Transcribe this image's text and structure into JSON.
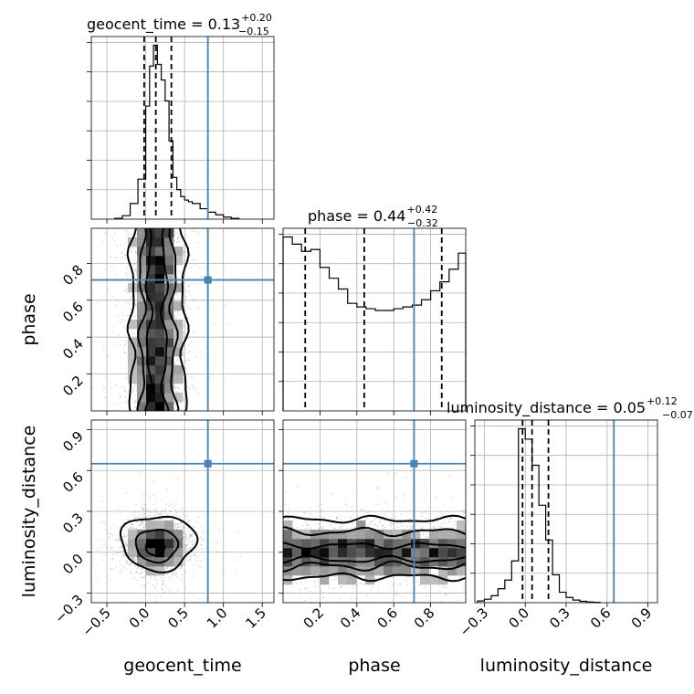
{
  "chart_data": {
    "type": "corner",
    "colors": {
      "truth": "#4682b4",
      "hist": "#000000",
      "grid": "#b0b0b0",
      "scatter": "#9a9a9a"
    },
    "parameters": [
      {
        "name": "geocent_time",
        "range": [
          -0.7,
          1.65
        ],
        "ticks": [
          -0.5,
          0.0,
          0.5,
          1.0,
          1.5
        ],
        "tick_labels": [
          "−0.5",
          "0.0",
          "0.5",
          "1.0",
          "1.5"
        ],
        "truth": 0.8,
        "quantiles": [
          -0.02,
          0.13,
          0.33
        ]
      },
      {
        "name": "phase",
        "range": [
          0.0,
          0.99
        ],
        "ticks": [
          0.2,
          0.4,
          0.6,
          0.8
        ],
        "tick_labels": [
          "0.2",
          "0.4",
          "0.6",
          "0.8"
        ],
        "truth": 0.71,
        "quantiles": [
          0.12,
          0.44,
          0.86
        ]
      },
      {
        "name": "luminosity_distance",
        "range": [
          -0.37,
          0.97
        ],
        "ticks": [
          -0.3,
          0.0,
          0.3,
          0.6,
          0.9
        ],
        "tick_labels": [
          "−0.3",
          "0.0",
          "0.3",
          "0.6",
          "0.9"
        ],
        "truth": 0.65,
        "quantiles": [
          -0.02,
          0.05,
          0.17
        ]
      }
    ],
    "titles": [
      {
        "label": "geocent_time = 0.13",
        "upper": "+0.20",
        "lower": "−0.15"
      },
      {
        "label": "phase = 0.44",
        "upper": "+0.42",
        "lower": "−0.32"
      },
      {
        "label": "luminosity_distance = 0.05",
        "upper": "+0.12",
        "lower": "−0.07"
      }
    ],
    "xlabels": [
      "geocent_time",
      "phase",
      "luminosity_distance"
    ],
    "ylabels": [
      "phase",
      "luminosity_distance"
    ],
    "histograms": [
      {
        "param": "geocent_time",
        "bin_edges": [
          -0.4,
          -0.3,
          -0.2,
          -0.1,
          0.0,
          0.05,
          0.1,
          0.15,
          0.2,
          0.25,
          0.3,
          0.35,
          0.4,
          0.45,
          0.5,
          0.55,
          0.6,
          0.7,
          0.8,
          0.9,
          1.0,
          1.1,
          1.2
        ],
        "counts": [
          0.005,
          0.02,
          0.09,
          0.23,
          0.65,
          0.88,
          1.0,
          0.89,
          0.8,
          0.68,
          0.45,
          0.24,
          0.17,
          0.13,
          0.11,
          0.1,
          0.09,
          0.06,
          0.04,
          0.025,
          0.012,
          0.005
        ]
      },
      {
        "param": "phase",
        "bin_edges": [
          0.0,
          0.05,
          0.1,
          0.15,
          0.2,
          0.25,
          0.3,
          0.35,
          0.4,
          0.45,
          0.5,
          0.55,
          0.6,
          0.65,
          0.7,
          0.75,
          0.8,
          0.85,
          0.9,
          0.95,
          0.99
        ],
        "counts": [
          0.97,
          0.93,
          0.89,
          0.9,
          0.8,
          0.74,
          0.68,
          0.6,
          0.58,
          0.57,
          0.56,
          0.56,
          0.57,
          0.58,
          0.59,
          0.62,
          0.67,
          0.72,
          0.79,
          0.88
        ]
      },
      {
        "param": "luminosity_distance",
        "bin_edges": [
          -0.35,
          -0.3,
          -0.25,
          -0.2,
          -0.15,
          -0.1,
          -0.05,
          0.0,
          0.05,
          0.1,
          0.15,
          0.2,
          0.25,
          0.3,
          0.35,
          0.4,
          0.45,
          0.5,
          0.55
        ],
        "counts": [
          0.01,
          0.02,
          0.04,
          0.08,
          0.13,
          0.24,
          1.0,
          0.94,
          0.79,
          0.56,
          0.36,
          0.16,
          0.06,
          0.03,
          0.015,
          0.008,
          0.004,
          0.002
        ]
      }
    ],
    "densities_2d": [
      {
        "x": "geocent_time",
        "y": "phase",
        "center_x": 0.13,
        "spread_x": 0.15,
        "y_span": [
          0.0,
          0.99
        ]
      },
      {
        "x": "geocent_time",
        "y": "luminosity_distance",
        "center_x": 0.15,
        "center_y": 0.05,
        "spread_x": 0.18,
        "spread_y": 0.09
      },
      {
        "x": "phase",
        "y": "luminosity_distance",
        "center_y": 0.0,
        "spread_y": 0.1,
        "x_span": [
          0.0,
          0.99
        ]
      }
    ]
  }
}
